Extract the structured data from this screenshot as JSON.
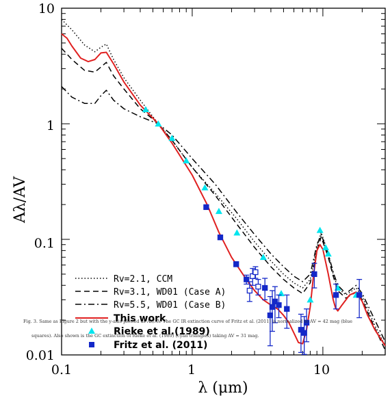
{
  "chart_data": {
    "type": "line",
    "xscale": "log",
    "yscale": "log",
    "xlim": [
      0.1,
      30
    ],
    "ylim": [
      0.01,
      10
    ],
    "xlabel": "λ (μm)",
    "ylabel": "Aλ/AV",
    "x_ticks": [
      "0.1",
      "1",
      "10"
    ],
    "y_ticks": [
      "0.01",
      "0.1",
      "1",
      "10"
    ],
    "legend_position": "lower-left",
    "series": [
      {
        "name": "RV=2.1, CCM",
        "style": "dotted",
        "color": "#000000",
        "x": [
          0.1,
          0.12,
          0.15,
          0.18,
          0.2,
          0.22,
          0.25,
          0.3,
          0.4,
          0.55,
          0.7,
          1.0,
          1.5,
          2.2,
          3.0,
          4.0,
          5.0,
          6.0,
          7.0,
          8.0,
          9.0,
          9.7,
          11.0,
          12.0,
          13.0,
          15.0,
          18.0,
          20.0,
          25.0,
          30.0
        ],
        "y": [
          8.0,
          6.5,
          4.8,
          4.2,
          4.6,
          4.9,
          3.6,
          2.5,
          1.6,
          1.0,
          0.72,
          0.42,
          0.25,
          0.15,
          0.095,
          0.065,
          0.05,
          0.042,
          0.038,
          0.045,
          0.085,
          0.115,
          0.075,
          0.05,
          0.038,
          0.033,
          0.038,
          0.032,
          0.018,
          0.012
        ]
      },
      {
        "name": "RV=3.1, WD01 (Case A)",
        "style": "dashed",
        "color": "#000000",
        "x": [
          0.1,
          0.12,
          0.15,
          0.18,
          0.2,
          0.22,
          0.25,
          0.3,
          0.4,
          0.55,
          0.7,
          1.0,
          1.5,
          2.2,
          3.0,
          4.0,
          5.0,
          6.0,
          7.0,
          8.0,
          9.0,
          9.7,
          11.0,
          12.0,
          13.0,
          15.0,
          18.0,
          20.0,
          25.0,
          30.0
        ],
        "y": [
          4.5,
          3.6,
          2.9,
          2.8,
          3.1,
          3.4,
          2.6,
          2.0,
          1.35,
          1.0,
          0.72,
          0.42,
          0.24,
          0.135,
          0.085,
          0.058,
          0.045,
          0.038,
          0.034,
          0.042,
          0.08,
          0.105,
          0.07,
          0.048,
          0.036,
          0.031,
          0.035,
          0.03,
          0.017,
          0.011
        ]
      },
      {
        "name": "RV=5.5, WD01 (Case B)",
        "style": "dashdot",
        "color": "#000000",
        "x": [
          0.1,
          0.12,
          0.15,
          0.18,
          0.2,
          0.22,
          0.25,
          0.3,
          0.4,
          0.55,
          0.7,
          1.0,
          1.5,
          2.2,
          3.0,
          4.0,
          5.0,
          6.0,
          7.0,
          8.0,
          9.0,
          9.7,
          11.0,
          12.0,
          13.0,
          15.0,
          18.0,
          20.0,
          25.0,
          30.0
        ],
        "y": [
          2.1,
          1.7,
          1.5,
          1.5,
          1.75,
          1.95,
          1.6,
          1.35,
          1.15,
          1.0,
          0.8,
          0.5,
          0.3,
          0.17,
          0.11,
          0.075,
          0.058,
          0.048,
          0.043,
          0.05,
          0.09,
          0.11,
          0.075,
          0.052,
          0.04,
          0.034,
          0.04,
          0.034,
          0.02,
          0.013
        ]
      },
      {
        "name": "This work",
        "style": "solid",
        "color": "#e02020",
        "x": [
          0.1,
          0.11,
          0.12,
          0.14,
          0.16,
          0.18,
          0.2,
          0.22,
          0.25,
          0.3,
          0.4,
          0.55,
          0.7,
          1.0,
          1.3,
          1.6,
          2.0,
          2.5,
          3.0,
          3.5,
          4.0,
          4.5,
          5.0,
          5.5,
          6.0,
          6.5,
          7.0,
          7.5,
          8.0,
          8.5,
          9.0,
          9.5,
          10.0,
          11.0,
          12.0,
          12.5,
          13.0,
          14.0,
          16.0,
          18.0,
          20.0,
          22.0,
          25.0,
          30.0
        ],
        "y": [
          6.0,
          5.5,
          4.7,
          3.7,
          3.45,
          3.6,
          4.1,
          4.15,
          3.3,
          2.3,
          1.45,
          1.0,
          0.68,
          0.36,
          0.2,
          0.115,
          0.07,
          0.048,
          0.036,
          0.03,
          0.027,
          0.025,
          0.022,
          0.019,
          0.0155,
          0.0128,
          0.0125,
          0.0165,
          0.026,
          0.05,
          0.08,
          0.09,
          0.082,
          0.05,
          0.03,
          0.0255,
          0.024,
          0.027,
          0.033,
          0.035,
          0.029,
          0.022,
          0.0165,
          0.012
        ]
      }
    ],
    "scatter": [
      {
        "name": "Rieke et al.(1989)",
        "marker": "triangle",
        "color": "#00e5ee",
        "x": [
          0.44,
          0.55,
          0.7,
          0.9,
          1.25,
          1.6,
          2.2,
          3.5,
          4.8,
          8.0,
          9.5,
          10.5,
          11.0,
          13.0,
          18.0
        ],
        "y": [
          1.33,
          1.0,
          0.75,
          0.48,
          0.28,
          0.175,
          0.114,
          0.07,
          0.034,
          0.03,
          0.12,
          0.085,
          0.075,
          0.038,
          0.033
        ]
      },
      {
        "name": "Fritz et al. (2011)",
        "marker": "square",
        "color": "#1428c8",
        "x": [
          1.28,
          1.64,
          2.17,
          2.6,
          2.75,
          2.9,
          3.05,
          3.2,
          3.6,
          3.95,
          4.1,
          4.3,
          4.6,
          5.3,
          6.8,
          7.2,
          7.5,
          8.6,
          12.6,
          19.0
        ],
        "y": [
          0.19,
          0.104,
          0.061,
          0.045,
          0.036,
          0.048,
          0.052,
          0.039,
          0.038,
          0.022,
          0.026,
          0.029,
          0.027,
          0.025,
          0.0165,
          0.0155,
          0.019,
          0.05,
          0.033,
          0.033
        ],
        "err": [
          0.004,
          0.003,
          0.003,
          0.004,
          0.007,
          0.008,
          0.006,
          0.006,
          0.008,
          0.01,
          0.01,
          0.01,
          0.006,
          0.008,
          0.006,
          0.006,
          0.006,
          0.012,
          0.008,
          0.012
        ],
        "open": [
          false,
          false,
          false,
          false,
          true,
          true,
          true,
          true,
          false,
          false,
          false,
          false,
          false,
          false,
          false,
          false,
          false,
          false,
          false,
          false
        ]
      }
    ]
  },
  "legend": [
    {
      "label": "Rv=2.1, CCM",
      "style": "dotted"
    },
    {
      "label": "Rv=3.1, WD01 (Case A)",
      "style": "dashed"
    },
    {
      "label": "Rv=5.5, WD01 (Case B)",
      "style": "dashdot"
    },
    {
      "label": "This work",
      "style": "solid"
    },
    {
      "label": "Rieke et al.(1989)",
      "style": "triangle"
    },
    {
      "label": "Fritz et al. (2011)",
      "style": "square"
    }
  ],
  "caption": {
    "line1": "Fig. 3.   Same as Figure 2 but with the y-axis plotted as Aλ/AV. The GC IR extinction curve of Fritz et al. (2011) is normalized to AV = 42 mag (blue",
    "line2": "squares). Also shown is the GC extinction of Rieke et al. (1989) (cyan triangles) taking AV = 31 mag."
  },
  "colors": {
    "model": "#e02020",
    "rieke": "#00e5ee",
    "fritz": "#1428c8"
  }
}
